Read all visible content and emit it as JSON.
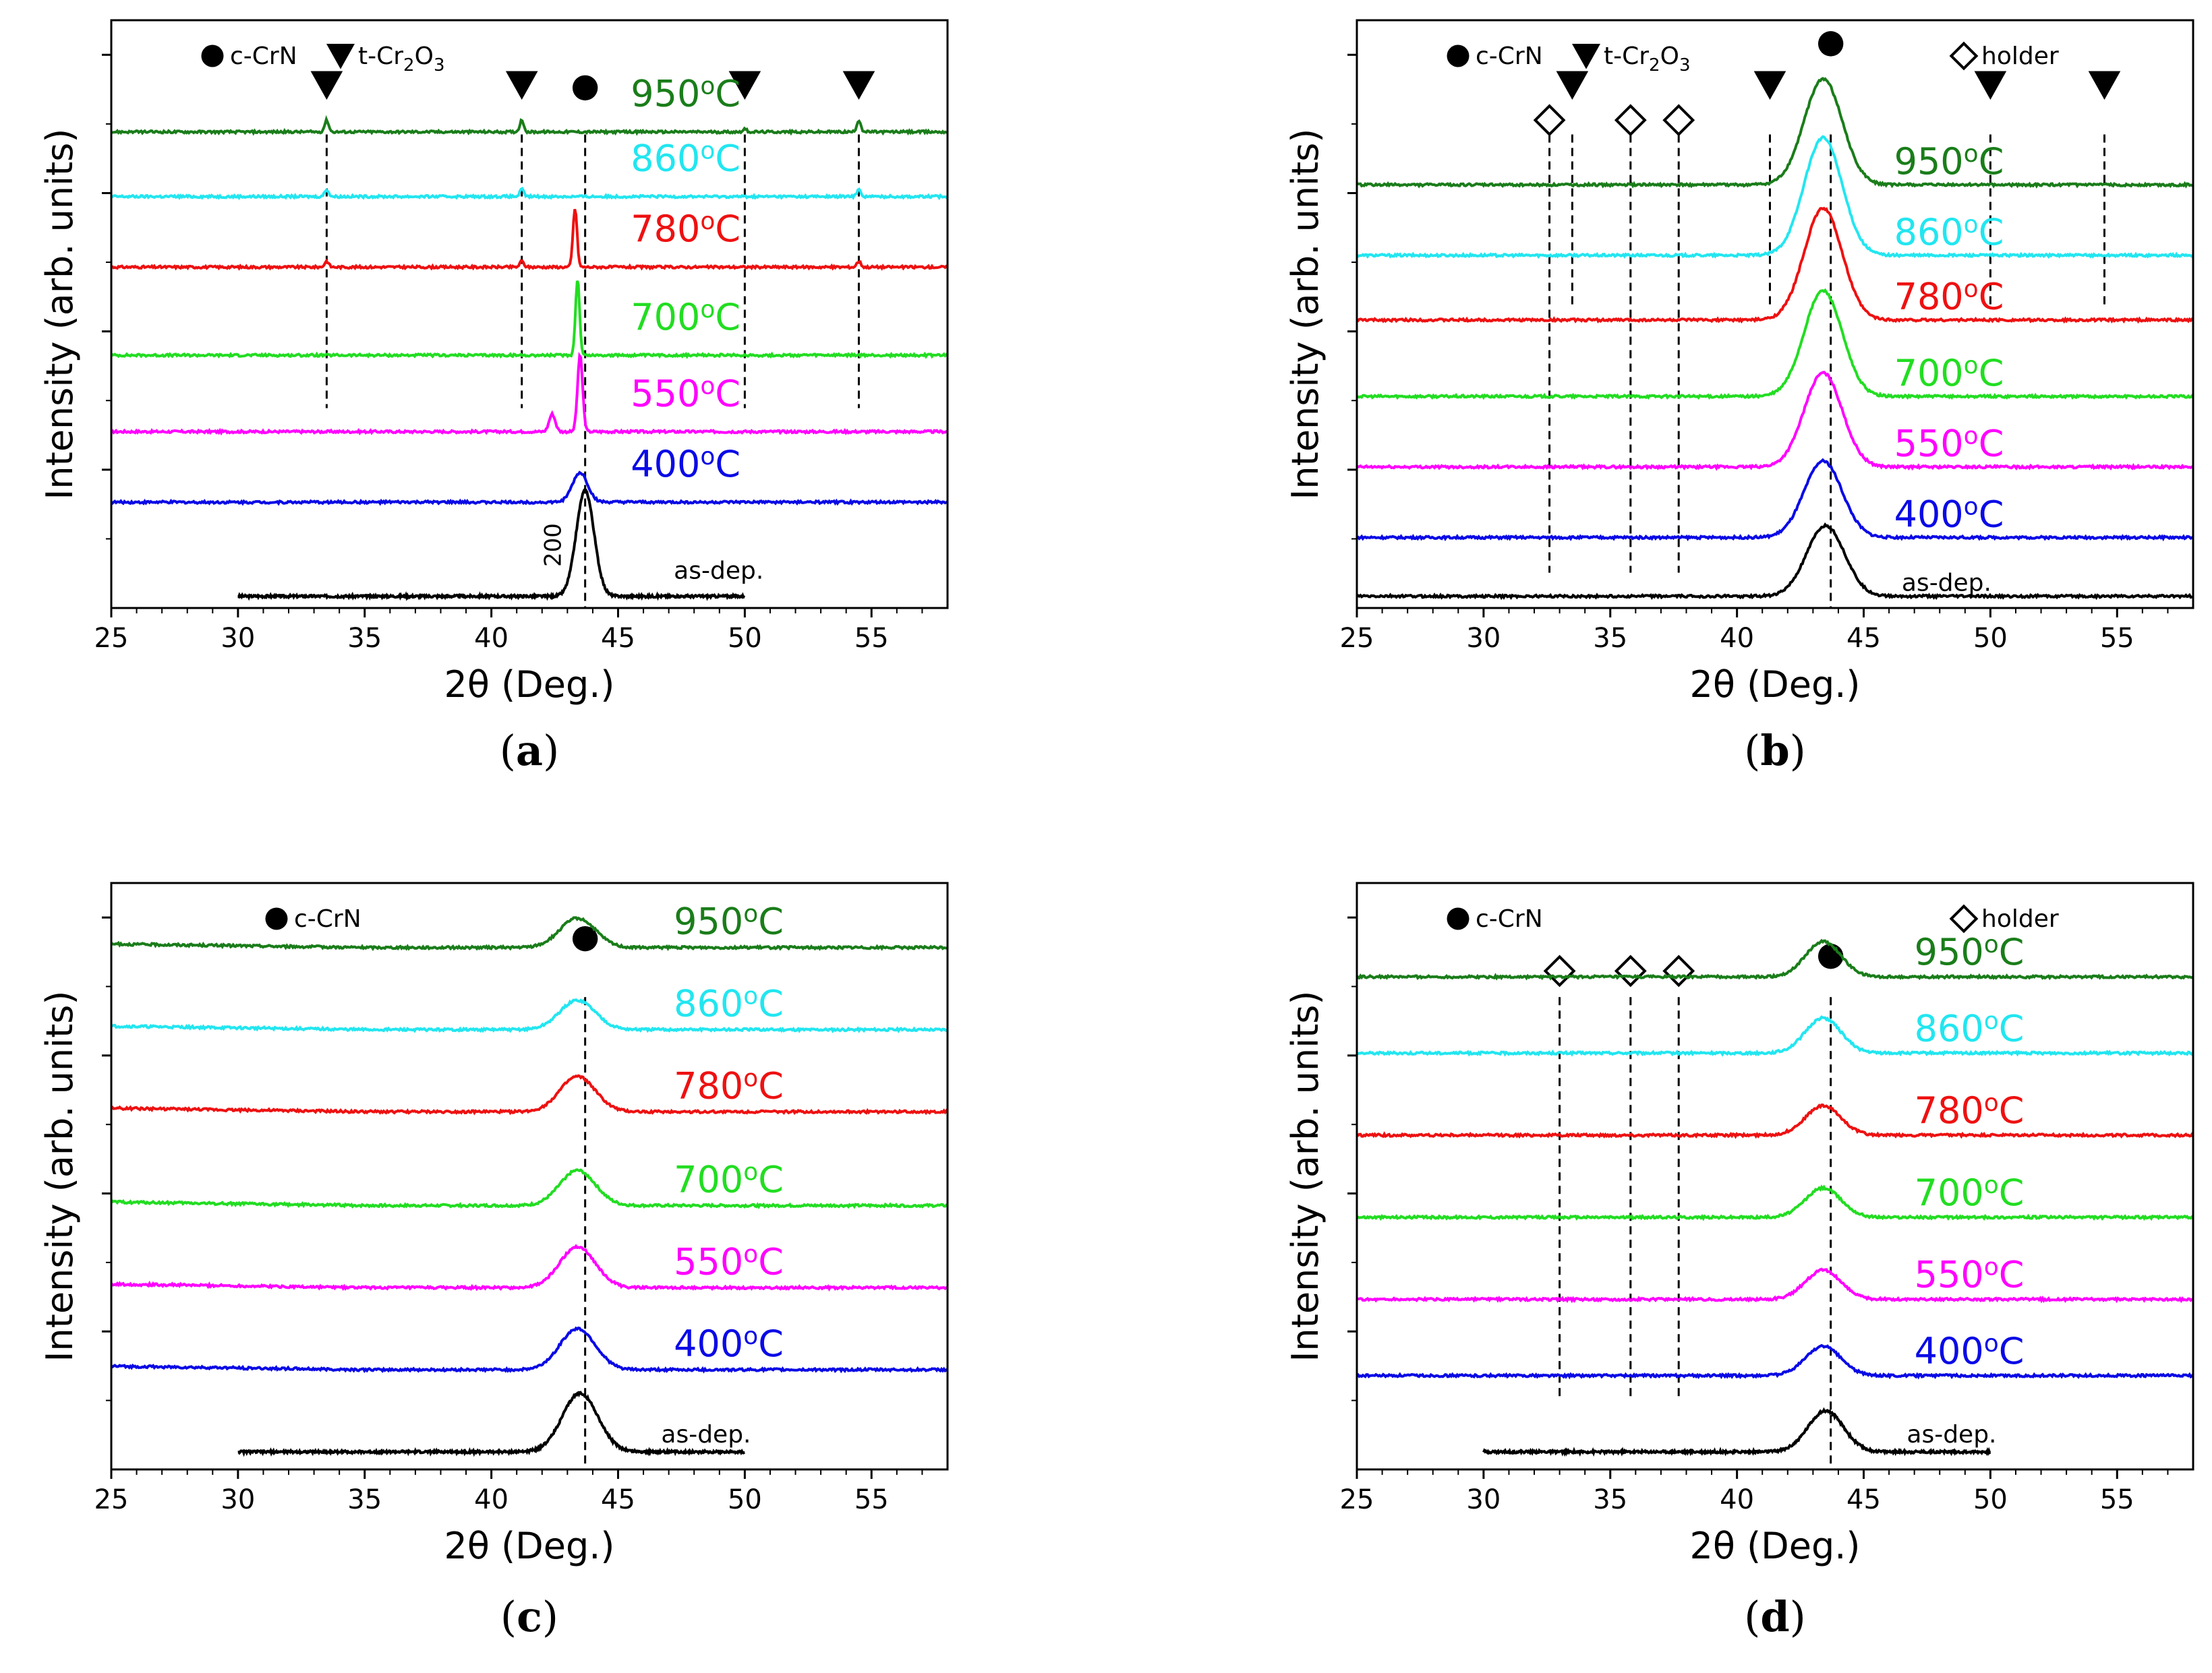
{
  "chart_data": [
    {
      "type": "line",
      "panel_label": "a",
      "xlabel": "2θ (Deg.)",
      "ylabel": "Intensity (arb. units)",
      "xlim": [
        25,
        58
      ],
      "xticks": [
        25,
        30,
        35,
        40,
        45,
        50,
        55
      ],
      "legend": [
        {
          "marker": "circle-filled",
          "label": "c-CrN"
        },
        {
          "marker": "triangle-down-filled",
          "label": "t-Cr2O3"
        }
      ],
      "reference_lines": [
        {
          "x": 33.5,
          "marker": "triangle-down-filled"
        },
        {
          "x": 41.2,
          "marker": "triangle-down-filled"
        },
        {
          "x": 43.7,
          "marker": "circle-filled"
        },
        {
          "x": 50.0,
          "marker": "triangle-down-filled"
        },
        {
          "x": 54.5,
          "marker": "triangle-down-filled"
        }
      ],
      "annotation": {
        "text": "200",
        "x": 43.7
      },
      "series": [
        {
          "name": "as-dep.",
          "label_text": "as-dep.",
          "color": "#000000",
          "baseline": 0.02,
          "x_start": 30,
          "x_end": 50,
          "peaks": [
            {
              "x": 43.7,
              "height": 0.18,
              "width": 0.35
            }
          ]
        },
        {
          "name": "400°C",
          "label_text": "400",
          "color": "#0a0ae6",
          "baseline": 0.18,
          "x_start": 25,
          "x_end": 58,
          "peaks": [
            {
              "x": 43.5,
              "height": 0.05,
              "width": 0.3
            }
          ]
        },
        {
          "name": "550°C",
          "label_text": "550",
          "color": "#ff00ff",
          "baseline": 0.3,
          "x_start": 25,
          "x_end": 58,
          "peaks": [
            {
              "x": 42.4,
              "height": 0.03,
              "width": 0.12
            },
            {
              "x": 43.5,
              "height": 0.13,
              "width": 0.1
            }
          ]
        },
        {
          "name": "700°C",
          "label_text": "700",
          "color": "#22dd22",
          "baseline": 0.43,
          "x_start": 25,
          "x_end": 58,
          "peaks": [
            {
              "x": 43.4,
              "height": 0.13,
              "width": 0.08
            }
          ]
        },
        {
          "name": "780°C",
          "label_text": "780",
          "color": "#ee1111",
          "baseline": 0.58,
          "x_start": 25,
          "x_end": 58,
          "peaks": [
            {
              "x": 33.5,
              "height": 0.01,
              "width": 0.08
            },
            {
              "x": 41.2,
              "height": 0.01,
              "width": 0.08
            },
            {
              "x": 43.3,
              "height": 0.1,
              "width": 0.08
            },
            {
              "x": 54.5,
              "height": 0.01,
              "width": 0.08
            }
          ]
        },
        {
          "name": "860°C",
          "label_text": "860",
          "color": "#22e6f0",
          "baseline": 0.7,
          "x_start": 25,
          "x_end": 58,
          "peaks": [
            {
              "x": 33.5,
              "height": 0.012,
              "width": 0.08
            },
            {
              "x": 41.2,
              "height": 0.012,
              "width": 0.08
            },
            {
              "x": 54.5,
              "height": 0.012,
              "width": 0.08
            }
          ]
        },
        {
          "name": "950°C",
          "label_text": "950",
          "color": "#1a7d1a",
          "baseline": 0.81,
          "x_start": 25,
          "x_end": 58,
          "peaks": [
            {
              "x": 33.5,
              "height": 0.02,
              "width": 0.08
            },
            {
              "x": 41.2,
              "height": 0.02,
              "width": 0.08
            },
            {
              "x": 50.0,
              "height": 0.005,
              "width": 0.08
            },
            {
              "x": 54.5,
              "height": 0.02,
              "width": 0.08
            }
          ]
        }
      ]
    },
    {
      "type": "line",
      "panel_label": "b",
      "xlabel": "2θ (Deg.)",
      "ylabel": "Intensity (arb. units)",
      "xlim": [
        25,
        58
      ],
      "xticks": [
        25,
        30,
        35,
        40,
        45,
        50,
        55
      ],
      "legend": [
        {
          "marker": "circle-filled",
          "label": "c-CrN"
        },
        {
          "marker": "triangle-down-filled",
          "label": "t-Cr2O3"
        },
        {
          "marker": "diamond-open",
          "label": "holder"
        }
      ],
      "reference_lines": [
        {
          "x": 32.6,
          "marker": "diamond-open"
        },
        {
          "x": 33.5,
          "marker": "triangle-down-filled"
        },
        {
          "x": 35.8,
          "marker": "diamond-open"
        },
        {
          "x": 37.7,
          "marker": "diamond-open"
        },
        {
          "x": 41.3,
          "marker": "triangle-down-filled"
        },
        {
          "x": 43.7,
          "marker": "circle-filled"
        },
        {
          "x": 50.0,
          "marker": "triangle-down-filled"
        },
        {
          "x": 54.5,
          "marker": "triangle-down-filled"
        }
      ],
      "series": [
        {
          "name": "as-dep.",
          "label_text": "as-dep.",
          "color": "#000000",
          "baseline": 0.02,
          "x_start": 25,
          "x_end": 58,
          "peaks": [
            {
              "x": 43.5,
              "height": 0.12,
              "width": 0.75
            }
          ]
        },
        {
          "name": "400°C",
          "label_text": "400",
          "color": "#0a0ae6",
          "baseline": 0.12,
          "x_start": 25,
          "x_end": 58,
          "peaks": [
            {
              "x": 43.4,
              "height": 0.13,
              "width": 0.75
            }
          ]
        },
        {
          "name": "550°C",
          "label_text": "550",
          "color": "#ff00ff",
          "baseline": 0.24,
          "x_start": 25,
          "x_end": 58,
          "peaks": [
            {
              "x": 43.4,
              "height": 0.16,
              "width": 0.75
            }
          ]
        },
        {
          "name": "700°C",
          "label_text": "700",
          "color": "#22dd22",
          "baseline": 0.36,
          "x_start": 25,
          "x_end": 58,
          "peaks": [
            {
              "x": 43.4,
              "height": 0.18,
              "width": 0.75
            }
          ]
        },
        {
          "name": "780°C",
          "label_text": "780",
          "color": "#ee1111",
          "baseline": 0.49,
          "x_start": 25,
          "x_end": 58,
          "peaks": [
            {
              "x": 43.4,
              "height": 0.19,
              "width": 0.75
            }
          ]
        },
        {
          "name": "860°C",
          "label_text": "860",
          "color": "#22e6f0",
          "baseline": 0.6,
          "x_start": 25,
          "x_end": 58,
          "peaks": [
            {
              "x": 43.4,
              "height": 0.2,
              "width": 0.75
            }
          ]
        },
        {
          "name": "950°C",
          "label_text": "950",
          "color": "#1a7d1a",
          "baseline": 0.72,
          "x_start": 25,
          "x_end": 58,
          "peaks": [
            {
              "x": 43.4,
              "height": 0.18,
              "width": 0.75
            }
          ]
        }
      ]
    },
    {
      "type": "line",
      "panel_label": "c",
      "xlabel": "2θ (Deg.)",
      "ylabel": "Intensity (arb. units)",
      "xlim": [
        25,
        58
      ],
      "xticks": [
        25,
        30,
        35,
        40,
        45,
        50,
        55
      ],
      "legend": [
        {
          "marker": "circle-filled",
          "label": "c-CrN"
        }
      ],
      "reference_lines": [
        {
          "x": 43.7,
          "marker": "circle-filled"
        }
      ],
      "series": [
        {
          "name": "as-dep.",
          "label_text": "as-dep.",
          "color": "#000000",
          "baseline": 0.03,
          "x_start": 30,
          "x_end": 50,
          "peaks": [
            {
              "x": 43.5,
              "height": 0.1,
              "width": 0.7
            }
          ]
        },
        {
          "name": "400°C",
          "label_text": "400",
          "color": "#0a0ae6",
          "baseline": 0.17,
          "x_start": 25,
          "x_end": 58,
          "peaks": [
            {
              "x": 43.4,
              "height": 0.07,
              "width": 0.7
            }
          ]
        },
        {
          "name": "550°C",
          "label_text": "550",
          "color": "#ff00ff",
          "baseline": 0.31,
          "x_start": 25,
          "x_end": 58,
          "peaks": [
            {
              "x": 43.4,
              "height": 0.07,
              "width": 0.7
            }
          ]
        },
        {
          "name": "700°C",
          "label_text": "700",
          "color": "#22dd22",
          "baseline": 0.45,
          "x_start": 25,
          "x_end": 58,
          "peaks": [
            {
              "x": 43.4,
              "height": 0.06,
              "width": 0.7
            }
          ]
        },
        {
          "name": "780°C",
          "label_text": "780",
          "color": "#ee1111",
          "baseline": 0.61,
          "x_start": 25,
          "x_end": 58,
          "peaks": [
            {
              "x": 43.4,
              "height": 0.06,
              "width": 0.7
            }
          ]
        },
        {
          "name": "860°C",
          "label_text": "860",
          "color": "#22e6f0",
          "baseline": 0.75,
          "x_start": 25,
          "x_end": 58,
          "peaks": [
            {
              "x": 43.4,
              "height": 0.05,
              "width": 0.7
            }
          ]
        },
        {
          "name": "950°C",
          "label_text": "950",
          "color": "#1a7d1a",
          "baseline": 0.89,
          "x_start": 25,
          "x_end": 58,
          "peaks": [
            {
              "x": 43.4,
              "height": 0.05,
              "width": 0.7
            }
          ]
        }
      ]
    },
    {
      "type": "line",
      "panel_label": "d",
      "xlabel": "2θ (Deg.)",
      "ylabel": "Intensity (arb. units)",
      "xlim": [
        25,
        58
      ],
      "xticks": [
        25,
        30,
        35,
        40,
        45,
        50,
        55
      ],
      "legend": [
        {
          "marker": "circle-filled",
          "label": "c-CrN"
        },
        {
          "marker": "diamond-open",
          "label": "holder"
        }
      ],
      "reference_lines": [
        {
          "x": 33.0,
          "marker": "diamond-open"
        },
        {
          "x": 35.8,
          "marker": "diamond-open"
        },
        {
          "x": 37.7,
          "marker": "diamond-open"
        },
        {
          "x": 43.7,
          "marker": "circle-filled"
        }
      ],
      "series": [
        {
          "name": "as-dep.",
          "label_text": "as-dep.",
          "color": "#000000",
          "baseline": 0.03,
          "x_start": 30,
          "x_end": 50,
          "peaks": [
            {
              "x": 43.5,
              "height": 0.07,
              "width": 0.7
            }
          ]
        },
        {
          "name": "400°C",
          "label_text": "400",
          "color": "#0a0ae6",
          "baseline": 0.16,
          "x_start": 25,
          "x_end": 58,
          "peaks": [
            {
              "x": 43.4,
              "height": 0.05,
              "width": 0.7
            }
          ]
        },
        {
          "name": "550°C",
          "label_text": "550",
          "color": "#ff00ff",
          "baseline": 0.29,
          "x_start": 25,
          "x_end": 58,
          "peaks": [
            {
              "x": 43.4,
              "height": 0.05,
              "width": 0.7
            }
          ]
        },
        {
          "name": "700°C",
          "label_text": "700",
          "color": "#22dd22",
          "baseline": 0.43,
          "x_start": 25,
          "x_end": 58,
          "peaks": [
            {
              "x": 43.4,
              "height": 0.05,
              "width": 0.7
            }
          ]
        },
        {
          "name": "780°C",
          "label_text": "780",
          "color": "#ee1111",
          "baseline": 0.57,
          "x_start": 25,
          "x_end": 58,
          "peaks": [
            {
              "x": 43.4,
              "height": 0.05,
              "width": 0.7
            }
          ]
        },
        {
          "name": "860°C",
          "label_text": "860",
          "color": "#22e6f0",
          "baseline": 0.71,
          "x_start": 25,
          "x_end": 58,
          "peaks": [
            {
              "x": 43.4,
              "height": 0.06,
              "width": 0.7
            }
          ]
        },
        {
          "name": "950°C",
          "label_text": "950",
          "color": "#1a7d1a",
          "baseline": 0.84,
          "x_start": 25,
          "x_end": 58,
          "peaks": [
            {
              "x": 43.4,
              "height": 0.06,
              "width": 0.7
            }
          ]
        }
      ]
    }
  ]
}
